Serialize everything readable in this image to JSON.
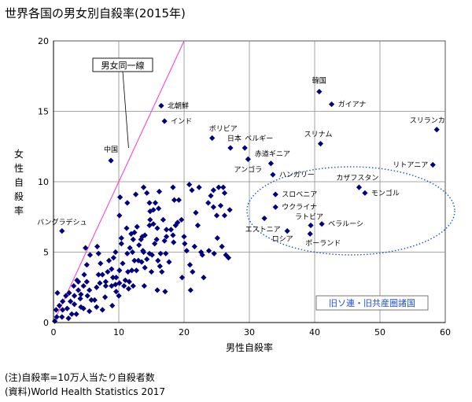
{
  "title": "世界各国の男女別自殺率(2015年)",
  "notes": {
    "note1": "(注)自殺率=10万人当たり自殺者数",
    "note2": "(資料)World Health Statistics 2017"
  },
  "chart_data": {
    "type": "scatter",
    "xlabel": "男性自殺率",
    "ylabel": "女性自殺率",
    "xlim": [
      0,
      60
    ],
    "ylim": [
      0,
      20
    ],
    "xticks": [
      0,
      10,
      20,
      30,
      40,
      50,
      60
    ],
    "yticks": [
      0,
      5,
      10,
      15,
      20
    ],
    "grid": true,
    "marker_color": "#000080",
    "reference_line": {
      "label": "男女同一線",
      "color": "#ff33cc",
      "slope": 1
    },
    "highlight_region": {
      "label": "旧ソ連・旧共産圏諸国",
      "color": "#1f4ed8"
    },
    "labeled_points": [
      {
        "name": "北朝鮮",
        "x": 16.5,
        "y": 15.4
      },
      {
        "name": "インド",
        "x": 17.0,
        "y": 14.3
      },
      {
        "name": "中国",
        "x": 8.8,
        "y": 11.5
      },
      {
        "name": "バングラデシュ",
        "x": 1.3,
        "y": 6.5
      },
      {
        "name": "ボリビア",
        "x": 24.3,
        "y": 13.1
      },
      {
        "name": "日本",
        "x": 27.1,
        "y": 12.4
      },
      {
        "name": "ベルギー",
        "x": 29.3,
        "y": 12.4
      },
      {
        "name": "アンゴラ",
        "x": 29.8,
        "y": 11.6
      },
      {
        "name": "赤道ギニア",
        "x": 33.3,
        "y": 11.3
      },
      {
        "name": "ハンガリー",
        "x": 33.6,
        "y": 10.5
      },
      {
        "name": "韓国",
        "x": 40.7,
        "y": 16.4
      },
      {
        "name": "ガイアナ",
        "x": 42.6,
        "y": 15.5
      },
      {
        "name": "スリナム",
        "x": 40.9,
        "y": 12.7
      },
      {
        "name": "スリランカ",
        "x": 58.7,
        "y": 13.7
      },
      {
        "name": "リトアニア",
        "x": 58.1,
        "y": 11.2
      },
      {
        "name": "カザフスタン",
        "x": 46.8,
        "y": 9.6
      },
      {
        "name": "モンゴル",
        "x": 47.7,
        "y": 9.2
      },
      {
        "name": "スロベニア",
        "x": 34.0,
        "y": 9.1
      },
      {
        "name": "ウクライナ",
        "x": 34.0,
        "y": 8.2
      },
      {
        "name": "エストニア",
        "x": 32.3,
        "y": 7.4
      },
      {
        "name": "ラトビア",
        "x": 39.4,
        "y": 6.9
      },
      {
        "name": "ベラルーシ",
        "x": 41.1,
        "y": 7.0
      },
      {
        "name": "ロシア",
        "x": 35.8,
        "y": 6.5
      },
      {
        "name": "ポーランド",
        "x": 39.3,
        "y": 6.3
      }
    ],
    "points": [
      [
        0.2,
        0.1
      ],
      [
        0.5,
        0.4
      ],
      [
        0.4,
        0.9
      ],
      [
        1.4,
        0.9
      ],
      [
        0.6,
        2.1
      ],
      [
        1.3,
        0.4
      ],
      [
        2.3,
        0.3
      ],
      [
        2.1,
        1.0
      ],
      [
        2.6,
        1.5
      ],
      [
        2.8,
        0.6
      ],
      [
        3.2,
        1.9
      ],
      [
        3.2,
        1.3
      ],
      [
        3.5,
        0.6
      ],
      [
        3.8,
        2.3
      ],
      [
        4.2,
        1.1
      ],
      [
        4.6,
        1.0
      ],
      [
        4.2,
        2.0
      ],
      [
        4.6,
        2.6
      ],
      [
        3.8,
        2.9
      ],
      [
        4.7,
        3.4
      ],
      [
        4.1,
        1.7
      ],
      [
        5.1,
        2.9
      ],
      [
        5.2,
        1.9
      ],
      [
        5.5,
        2.3
      ],
      [
        5.8,
        1.6
      ],
      [
        6.3,
        1.6
      ],
      [
        6.6,
        2.5
      ],
      [
        6.9,
        3.4
      ],
      [
        7.2,
        4.2
      ],
      [
        7.5,
        3.4
      ],
      [
        7.1,
        2.8
      ],
      [
        7.9,
        1.8
      ],
      [
        8.0,
        2.6
      ],
      [
        8.0,
        2.9
      ],
      [
        8.3,
        3.6
      ],
      [
        8.5,
        4.4
      ],
      [
        8.9,
        3.8
      ],
      [
        8.9,
        2.6
      ],
      [
        9.1,
        3.2
      ],
      [
        9.5,
        2.7
      ],
      [
        9.6,
        3.2
      ],
      [
        9.5,
        5.0
      ],
      [
        9.6,
        2.2
      ],
      [
        10.1,
        2.8
      ],
      [
        10.1,
        3.7
      ],
      [
        10.6,
        4.2
      ],
      [
        10.8,
        2.6
      ],
      [
        10.4,
        5.6
      ],
      [
        11.0,
        3.0
      ],
      [
        11.4,
        3.6
      ],
      [
        11.6,
        2.9
      ],
      [
        11.3,
        4.9
      ],
      [
        12.0,
        3.7
      ],
      [
        12.1,
        5.0
      ],
      [
        12.4,
        4.4
      ],
      [
        12.7,
        3.7
      ],
      [
        13.0,
        4.4
      ],
      [
        13.1,
        5.5
      ],
      [
        13.5,
        4.3
      ],
      [
        13.7,
        5.1
      ],
      [
        14.0,
        3.9
      ],
      [
        14.3,
        4.5
      ],
      [
        14.7,
        4.9
      ],
      [
        15.0,
        3.6
      ],
      [
        15.5,
        5.6
      ],
      [
        15.8,
        5.9
      ],
      [
        16.0,
        4.4
      ],
      [
        16.4,
        4.9
      ],
      [
        16.6,
        3.6
      ],
      [
        17.0,
        5.8
      ],
      [
        17.3,
        6.1
      ],
      [
        17.7,
        4.3
      ],
      [
        18.0,
        6.6
      ],
      [
        18.3,
        6.2
      ],
      [
        18.7,
        6.9
      ],
      [
        19.0,
        7.1
      ],
      [
        19.6,
        7.3
      ],
      [
        20.0,
        6.1
      ],
      [
        20.4,
        5.1
      ],
      [
        20.9,
        4.1
      ],
      [
        21.3,
        3.6
      ],
      [
        21.6,
        5.4
      ],
      [
        22.1,
        6.9
      ],
      [
        22.6,
        5.0
      ],
      [
        22.8,
        4.8
      ],
      [
        23.0,
        3.2
      ],
      [
        23.8,
        5.1
      ],
      [
        24.6,
        4.9
      ],
      [
        25.1,
        6.0
      ],
      [
        25.8,
        5.4
      ],
      [
        26.4,
        4.8
      ],
      [
        26.8,
        4.6
      ],
      [
        23.7,
        8.5
      ],
      [
        24.5,
        8.2
      ],
      [
        25.0,
        7.6
      ],
      [
        25.6,
        8.3
      ],
      [
        26.2,
        7.6
      ],
      [
        27.0,
        8.0
      ],
      [
        26.0,
        9.6
      ],
      [
        26.2,
        9.2
      ],
      [
        24.1,
        9.0
      ],
      [
        24.5,
        9.4
      ],
      [
        25.3,
        9.6
      ],
      [
        22.3,
        9.6
      ],
      [
        21.2,
        9.4
      ],
      [
        20.8,
        9.8
      ],
      [
        18.3,
        9.6
      ],
      [
        18.5,
        8.7
      ],
      [
        19.2,
        8.7
      ],
      [
        16.2,
        9.3
      ],
      [
        15.6,
        8.5
      ],
      [
        15.3,
        8.0
      ],
      [
        16.1,
        8.1
      ],
      [
        14.8,
        7.3
      ],
      [
        14.7,
        6.9
      ],
      [
        15.3,
        7.0
      ],
      [
        14.0,
        6.2
      ],
      [
        13.6,
        6.1
      ],
      [
        12.8,
        6.8
      ],
      [
        12.4,
        6.4
      ],
      [
        11.9,
        6.3
      ],
      [
        11.2,
        6.7
      ],
      [
        10.4,
        6.0
      ],
      [
        10.1,
        7.6
      ],
      [
        11.3,
        8.5
      ],
      [
        10.2,
        8.9
      ],
      [
        12.6,
        9.1
      ],
      [
        13.8,
        9.6
      ],
      [
        14.3,
        9.2
      ],
      [
        14.7,
        8.5
      ],
      [
        16.8,
        7.3
      ],
      [
        17.3,
        6.6
      ],
      [
        15.9,
        6.7
      ],
      [
        13.8,
        5.0
      ],
      [
        12.2,
        5.9
      ],
      [
        11.7,
        5.3
      ],
      [
        9.2,
        4.6
      ],
      [
        6.9,
        4.9
      ],
      [
        6.7,
        5.4
      ],
      [
        5.6,
        4.8
      ],
      [
        5.1,
        4.1
      ],
      [
        4.9,
        5.3
      ],
      [
        3.6,
        3.0
      ],
      [
        3.1,
        2.6
      ],
      [
        2.4,
        2.1
      ],
      [
        1.9,
        1.9
      ],
      [
        1.4,
        1.5
      ],
      [
        0.9,
        1.2
      ],
      [
        7.5,
        0.9
      ],
      [
        6.6,
        1.1
      ],
      [
        5.5,
        0.8
      ],
      [
        9.0,
        1.2
      ],
      [
        10.0,
        1.9
      ],
      [
        11.5,
        2.4
      ],
      [
        12.2,
        2.6
      ],
      [
        13.9,
        2.6
      ],
      [
        15.9,
        2.3
      ],
      [
        17.1,
        2.2
      ],
      [
        16.3,
        4.0
      ],
      [
        15.1,
        4.8
      ],
      [
        13.4,
        5.9
      ],
      [
        19.7,
        3.2
      ],
      [
        21.0,
        2.3
      ],
      [
        14.8,
        7.9
      ],
      [
        17.2,
        4.9
      ],
      [
        18.4,
        5.7
      ],
      [
        20.1,
        5.6
      ],
      [
        21.8,
        7.8
      ]
    ]
  }
}
